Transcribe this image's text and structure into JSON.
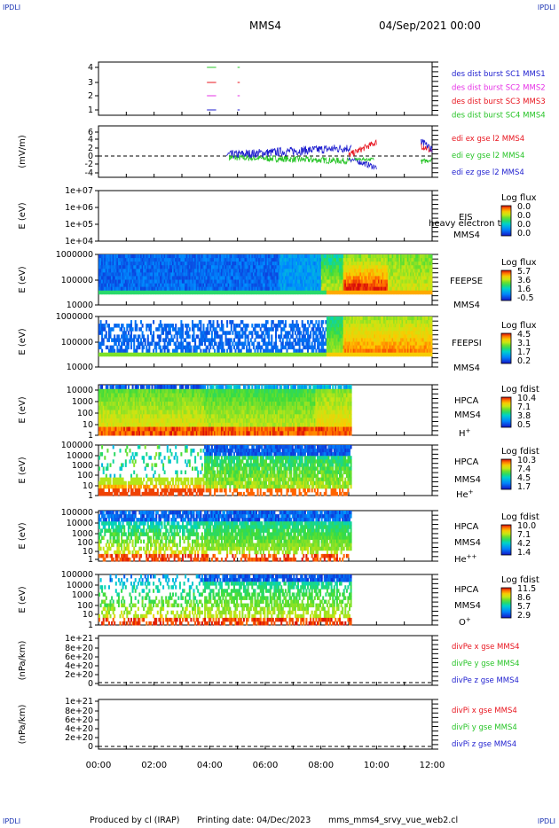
{
  "corner_labels": {
    "tl": "IPDLI",
    "tr": "IPDLI",
    "bl": "IPDLI",
    "br": "IPDLI"
  },
  "header": {
    "spacecraft": "MMS4",
    "date": "04/Sep/2021 00:00"
  },
  "footer": {
    "produced": "Produced by cl (IRAP)",
    "printing": "Printing date: 04/Dec/2023",
    "file": "mms_mms4_srvy_vue_web2.cl"
  },
  "time_axis": {
    "ticks": [
      "00:00",
      "02:00",
      "04:00",
      "06:00",
      "08:00",
      "10:00",
      "12:00"
    ]
  },
  "colors": {
    "red": "#e8141e",
    "green": "#27c427",
    "blue": "#1e1ecf",
    "magenta": "#e632e6",
    "black": "#000000"
  },
  "chart_data": [
    {
      "type": "line",
      "id": "des-dist",
      "yticks": [
        "4",
        "3",
        "2",
        "1"
      ],
      "legend": [
        {
          "label": "des dist burst SC1 MMS1",
          "color": "blue"
        },
        {
          "label": "des dist burst SC2 MMS2",
          "color": "magenta"
        },
        {
          "label": "des dist burst SC3 MMS3",
          "color": "red"
        },
        {
          "label": "des dist burst SC4 MMS4",
          "color": "green"
        }
      ],
      "series": [
        {
          "name": "MMS4",
          "y": 4,
          "segments": [
            [
              3.9,
              4.2
            ],
            [
              5.0,
              5.05
            ]
          ]
        },
        {
          "name": "MMS3",
          "y": 3,
          "segments": [
            [
              3.9,
              4.2
            ],
            [
              5.0,
              5.05
            ]
          ]
        },
        {
          "name": "MMS2",
          "y": 2,
          "segments": [
            [
              3.9,
              4.2
            ],
            [
              5.0,
              5.05
            ]
          ]
        },
        {
          "name": "MMS1",
          "y": 1,
          "segments": [
            [
              3.9,
              4.2
            ],
            [
              5.0,
              5.05
            ]
          ]
        }
      ]
    },
    {
      "type": "line",
      "id": "edi-e",
      "ylabel": "(mV/m)",
      "yticks": [
        "6",
        "4",
        "2",
        "0",
        "-2",
        "-4"
      ],
      "ylim": [
        -5,
        7
      ],
      "legend": [
        {
          "label": "edi ex gse l2 MMS4",
          "color": "red"
        },
        {
          "label": "edi ey gse l2 MMS4",
          "color": "green"
        },
        {
          "label": "edi ez gse l2 MMS4",
          "color": "blue"
        }
      ]
    },
    {
      "type": "heatmap",
      "id": "eis",
      "ylabel": "E (eV)",
      "yticks": [
        "1e+07",
        "1e+06",
        "1e+05",
        "1e+04"
      ],
      "inst": "EIS",
      "sub": "MMS4",
      "overlay": "heavy electron to",
      "cbar_title": "Log flux",
      "cbar_ticks": [
        "0.0",
        "0.0",
        "0.0",
        "0.0"
      ]
    },
    {
      "type": "heatmap",
      "id": "feepse",
      "ylabel": "E (eV)",
      "yticks": [
        "1000000",
        "100000",
        "10000"
      ],
      "inst": "FEEPSE",
      "sub": "MMS4",
      "cbar_title": "Log flux",
      "cbar_ticks": [
        "5.7",
        "3.6",
        "1.6",
        "-0.5"
      ]
    },
    {
      "type": "heatmap",
      "id": "feepsi",
      "ylabel": "E (eV)",
      "yticks": [
        "1000000",
        "100000",
        "10000"
      ],
      "inst": "FEEPSI",
      "sub": "MMS4",
      "cbar_title": "Log flux",
      "cbar_ticks": [
        "4.5",
        "3.1",
        "1.7",
        "0.2"
      ]
    },
    {
      "type": "heatmap",
      "id": "hpca-h",
      "ylabel": "E (eV)",
      "yticks": [
        "10000",
        "1000",
        "100",
        "10",
        "1"
      ],
      "inst": "HPCA",
      "sub": "MMS4",
      "species": "H",
      "sup": "+",
      "cbar_title": "Log fdist",
      "cbar_ticks": [
        "10.4",
        "7.1",
        "3.8",
        "0.5"
      ]
    },
    {
      "type": "heatmap",
      "id": "hpca-he",
      "ylabel": "E (eV)",
      "yticks": [
        "100000",
        "10000",
        "1000",
        "100",
        "10",
        "1"
      ],
      "inst": "HPCA",
      "sub": "MMS4",
      "species": "He",
      "sup": "+",
      "cbar_title": "Log fdist",
      "cbar_ticks": [
        "10.3",
        "7.4",
        "4.5",
        "1.7"
      ]
    },
    {
      "type": "heatmap",
      "id": "hpca-he2",
      "ylabel": "E (eV)",
      "yticks": [
        "100000",
        "10000",
        "1000",
        "100",
        "10",
        "1"
      ],
      "inst": "HPCA",
      "sub": "MMS4",
      "species": "He",
      "sup": "++",
      "cbar_title": "Log fdist",
      "cbar_ticks": [
        "10.0",
        "7.1",
        "4.2",
        "1.4"
      ]
    },
    {
      "type": "heatmap",
      "id": "hpca-o",
      "ylabel": "E (eV)",
      "yticks": [
        "100000",
        "10000",
        "1000",
        "100",
        "10",
        "1"
      ],
      "inst": "HPCA",
      "sub": "MMS4",
      "species": "O",
      "sup": "+",
      "cbar_title": "Log fdist",
      "cbar_ticks": [
        "11.5",
        "8.6",
        "5.7",
        "2.9"
      ]
    },
    {
      "type": "line",
      "id": "divpe",
      "ylabel": "(nPa/km)",
      "yticks": [
        "1e+21",
        "8e+20",
        "6e+20",
        "4e+20",
        "2e+20",
        "0"
      ],
      "legend": [
        {
          "label": "divPe x gse MMS4",
          "color": "red"
        },
        {
          "label": "divPe y gse MMS4",
          "color": "green"
        },
        {
          "label": "divPe z gse MMS4",
          "color": "blue"
        }
      ]
    },
    {
      "type": "line",
      "id": "divpi",
      "ylabel": "(nPa/km)",
      "yticks": [
        "1e+21",
        "8e+20",
        "6e+20",
        "4e+20",
        "2e+20",
        "0"
      ],
      "legend": [
        {
          "label": "divPi x gse MMS4",
          "color": "red"
        },
        {
          "label": "divPi y gse MMS4",
          "color": "green"
        },
        {
          "label": "divPi z gse MMS4",
          "color": "blue"
        }
      ]
    }
  ]
}
